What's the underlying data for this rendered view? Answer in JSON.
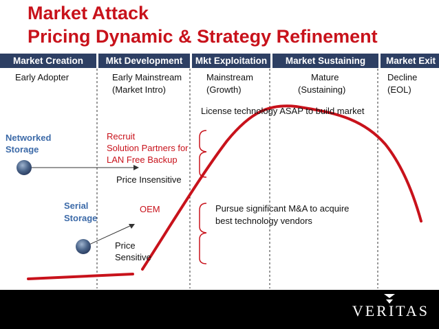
{
  "title": {
    "line1": "Market Attack",
    "line2": "Pricing Dynamic & Strategy Refinement"
  },
  "phases": [
    {
      "label": "Market Creation"
    },
    {
      "label": "Mkt Development"
    },
    {
      "label": "Mkt Exploitation"
    },
    {
      "label": "Market Sustaining"
    },
    {
      "label": "Market Exit"
    }
  ],
  "stages": {
    "early_adopter": "Early Adopter",
    "early_mainstream_1": "Early Mainstream",
    "early_mainstream_2": "(Market Intro)",
    "mainstream_1": "Mainstream",
    "mainstream_2": "(Growth)",
    "mature_1": "Mature",
    "mature_2": "(Sustaining)",
    "decline_1": "Decline",
    "decline_2": "(EOL)"
  },
  "annotations": {
    "license": "License technology ASAP to build market",
    "networked_1": "Networked",
    "networked_2": "Storage",
    "recruit_1": "Recruit",
    "recruit_2": "Solution Partners for",
    "recruit_3": "LAN Free Backup",
    "price_insensitive": "Price Insensitive",
    "serial_1": "Serial",
    "serial_2": "Storage",
    "oem": "OEM",
    "pursue_1": "Pursue significant M&A to acquire",
    "pursue_2": "best technology vendors",
    "price_sensitive_1": "Price",
    "price_sensitive_2": "Sensitive"
  },
  "footer": {
    "logo": "VERITAS"
  },
  "colors": {
    "accent_red": "#c8121b",
    "phase_bar": "#2d3f63",
    "label_blue": "#3c6aa8"
  }
}
